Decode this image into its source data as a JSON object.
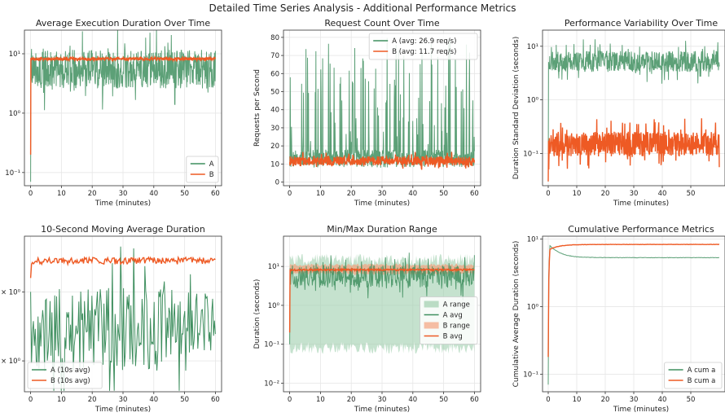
{
  "figure": {
    "suptitle": "Detailed Time Series Analysis - Additional Performance Metrics",
    "colors": {
      "A": "#3f8f5f",
      "B": "#ee5a24",
      "A_fill": "#9fcfae",
      "B_fill": "#f3a27f",
      "grid": "#e6e6e6"
    }
  },
  "chart_data": [
    {
      "type": "line",
      "title": "Average Execution Duration Over Time",
      "xlabel": "Time (minutes)",
      "ylabel": "",
      "xlim": [
        -2,
        62
      ],
      "ylim": [
        0.06,
        25
      ],
      "yscale": "log",
      "xticks": [
        0,
        10,
        20,
        30,
        40,
        50,
        60
      ],
      "yticks": [
        {
          "v": 0.1,
          "label": "10⁻¹"
        },
        {
          "v": 1,
          "label": "10⁰"
        },
        {
          "v": 10,
          "label": "10¹"
        }
      ],
      "grid": true,
      "legend": {
        "placement": "lower-right",
        "entries": [
          "A",
          "B"
        ]
      },
      "series": [
        {
          "name": "A",
          "color": "A",
          "gen": {
            "mode": "log",
            "base": 5.5,
            "amp": 0.5,
            "seed": 3,
            "n": 600,
            "start": 0.07
          }
        },
        {
          "name": "B",
          "color": "B",
          "gen": {
            "mode": "flat",
            "base": 8.2,
            "amp": 0.06,
            "seed": 7,
            "n": 600,
            "start": 0.2
          }
        }
      ]
    },
    {
      "type": "line",
      "title": "Request Count Over Time",
      "xlabel": "Time (minutes)",
      "ylabel": "Requests per Second",
      "xlim": [
        -2,
        62
      ],
      "ylim": [
        -2,
        84
      ],
      "yscale": "linear",
      "xticks": [
        0,
        10,
        20,
        30,
        40,
        50,
        60
      ],
      "yticks": [
        {
          "v": 0,
          "label": "0"
        },
        {
          "v": 10,
          "label": "10"
        },
        {
          "v": 20,
          "label": "20"
        },
        {
          "v": 30,
          "label": "30"
        },
        {
          "v": 40,
          "label": "40"
        },
        {
          "v": 50,
          "label": "50"
        },
        {
          "v": 60,
          "label": "60"
        },
        {
          "v": 70,
          "label": "70"
        },
        {
          "v": 80,
          "label": "80"
        }
      ],
      "grid": true,
      "legend": {
        "placement": "upper-right",
        "entries": [
          "A (avg: 26.9 req/s)",
          "B (avg: 11.7 req/s)"
        ]
      },
      "series": [
        {
          "name": "A (avg: 26.9 req/s)",
          "color": "A",
          "gen": {
            "mode": "spiky",
            "base": 8,
            "top": 80,
            "seed": 11,
            "n": 600
          }
        },
        {
          "name": "B (avg: 11.7 req/s)",
          "color": "B",
          "gen": {
            "mode": "lin",
            "base": 11.7,
            "amp": 2.5,
            "seed": 13,
            "n": 600
          }
        }
      ]
    },
    {
      "type": "line",
      "title": "Performance Variability Over Time",
      "xlabel": "Time (minutes)",
      "ylabel": "Duration Standard Deviation (seconds)",
      "xlim": [
        -2,
        62
      ],
      "ylim": [
        0.025,
        20
      ],
      "yscale": "log",
      "xticks": [
        0,
        10,
        20,
        30,
        40,
        50
      ],
      "yticks": [
        {
          "v": 0.1,
          "label": "10⁻¹"
        },
        {
          "v": 1,
          "label": "10⁰"
        },
        {
          "v": 10,
          "label": "10¹"
        }
      ],
      "grid": true,
      "legend": {
        "placement": "right",
        "entries": []
      },
      "series": [
        {
          "name": "",
          "color": "A",
          "gen": {
            "mode": "log",
            "base": 5.2,
            "amp": 0.3,
            "seed": 21,
            "n": 600,
            "start": 0.03
          }
        },
        {
          "name": "",
          "color": "B",
          "gen": {
            "mode": "log",
            "base": 0.15,
            "amp": 0.35,
            "seed": 23,
            "n": 600,
            "start": 0.03
          }
        }
      ]
    },
    {
      "type": "line",
      "title": "10-Second Moving Average Duration",
      "xlabel": "Time (minutes)",
      "ylabel": "",
      "xlim": [
        -2,
        62
      ],
      "ylim": [
        2.2,
        10.5
      ],
      "yscale": "log",
      "xticks": [
        0,
        10,
        20,
        30,
        40,
        50,
        60
      ],
      "yticks": [
        {
          "v": 6,
          "label": "6 × 10⁰"
        },
        {
          "v": 3,
          "label": "3 × 10⁰"
        }
      ],
      "grid": true,
      "legend": {
        "placement": "lower-left",
        "entries": [
          "A (10s avg)",
          "B (10s avg)"
        ]
      },
      "series": [
        {
          "name": "A (10s avg)",
          "color": "A",
          "gen": {
            "mode": "log",
            "base": 4.1,
            "amp": 0.28,
            "seed": 31,
            "n": 200,
            "start": 6.0
          }
        },
        {
          "name": "B (10s avg)",
          "color": "B",
          "gen": {
            "mode": "flat",
            "base": 8.2,
            "amp": 0.035,
            "seed": 33,
            "n": 200,
            "start": 6.9
          }
        }
      ]
    },
    {
      "type": "area",
      "title": "Min/Max Duration Range",
      "xlabel": "Time (minutes)",
      "ylabel": "Duration (seconds)",
      "xlim": [
        -2,
        62
      ],
      "ylim": [
        0.006,
        60
      ],
      "yscale": "log",
      "xticks": [
        0,
        10,
        20,
        30,
        40,
        50,
        60
      ],
      "yticks": [
        {
          "v": 0.01,
          "label": "10⁻²"
        },
        {
          "v": 0.1,
          "label": "10⁻¹"
        },
        {
          "v": 1,
          "label": "10⁰"
        },
        {
          "v": 10,
          "label": "10¹"
        }
      ],
      "grid": true,
      "legend": {
        "placement": "right",
        "entries": [
          "A range",
          "A avg",
          "B range",
          "B avg"
        ]
      },
      "bands": [
        {
          "name": "A range",
          "color": "A_fill",
          "low": 0.08,
          "high": 15,
          "jitter": 0.35,
          "seed": 41
        },
        {
          "name": "B range",
          "color": "B_fill",
          "low": 6.5,
          "high": 11,
          "jitter": 0.08,
          "seed": 43
        }
      ],
      "series": [
        {
          "name": "A avg",
          "color": "A",
          "gen": {
            "mode": "log",
            "base": 5.5,
            "amp": 0.45,
            "seed": 45,
            "n": 400,
            "start": 0.1
          }
        },
        {
          "name": "B avg",
          "color": "B",
          "gen": {
            "mode": "flat",
            "base": 8.2,
            "amp": 0.05,
            "seed": 47,
            "n": 400,
            "start": 0.2
          }
        }
      ]
    },
    {
      "type": "line",
      "title": "Cumulative Performance Metrics",
      "xlabel": "Time (minutes)",
      "ylabel": "Cumulative Average Duration (seconds)",
      "xlim": [
        -2,
        62
      ],
      "ylim": [
        0.055,
        11
      ],
      "yscale": "log",
      "xticks": [
        0,
        10,
        20,
        30,
        40,
        50
      ],
      "yticks": [
        {
          "v": 0.1,
          "label": "10⁻¹"
        },
        {
          "v": 1,
          "label": "10⁰"
        },
        {
          "v": 10,
          "label": "10¹"
        }
      ],
      "grid": true,
      "legend": {
        "placement": "lower-right",
        "entries": [
          "A cum a",
          "B cum a"
        ]
      },
      "series": [
        {
          "name": "A cum a",
          "color": "A",
          "gen": {
            "mode": "cum",
            "start": 0.07,
            "peak": 8.0,
            "end": 5.3,
            "seed": 51,
            "n": 300
          }
        },
        {
          "name": "B cum a",
          "color": "B",
          "gen": {
            "mode": "cum",
            "start": 0.18,
            "peak": 7.0,
            "end": 8.3,
            "seed": 53,
            "n": 300
          }
        }
      ]
    }
  ]
}
